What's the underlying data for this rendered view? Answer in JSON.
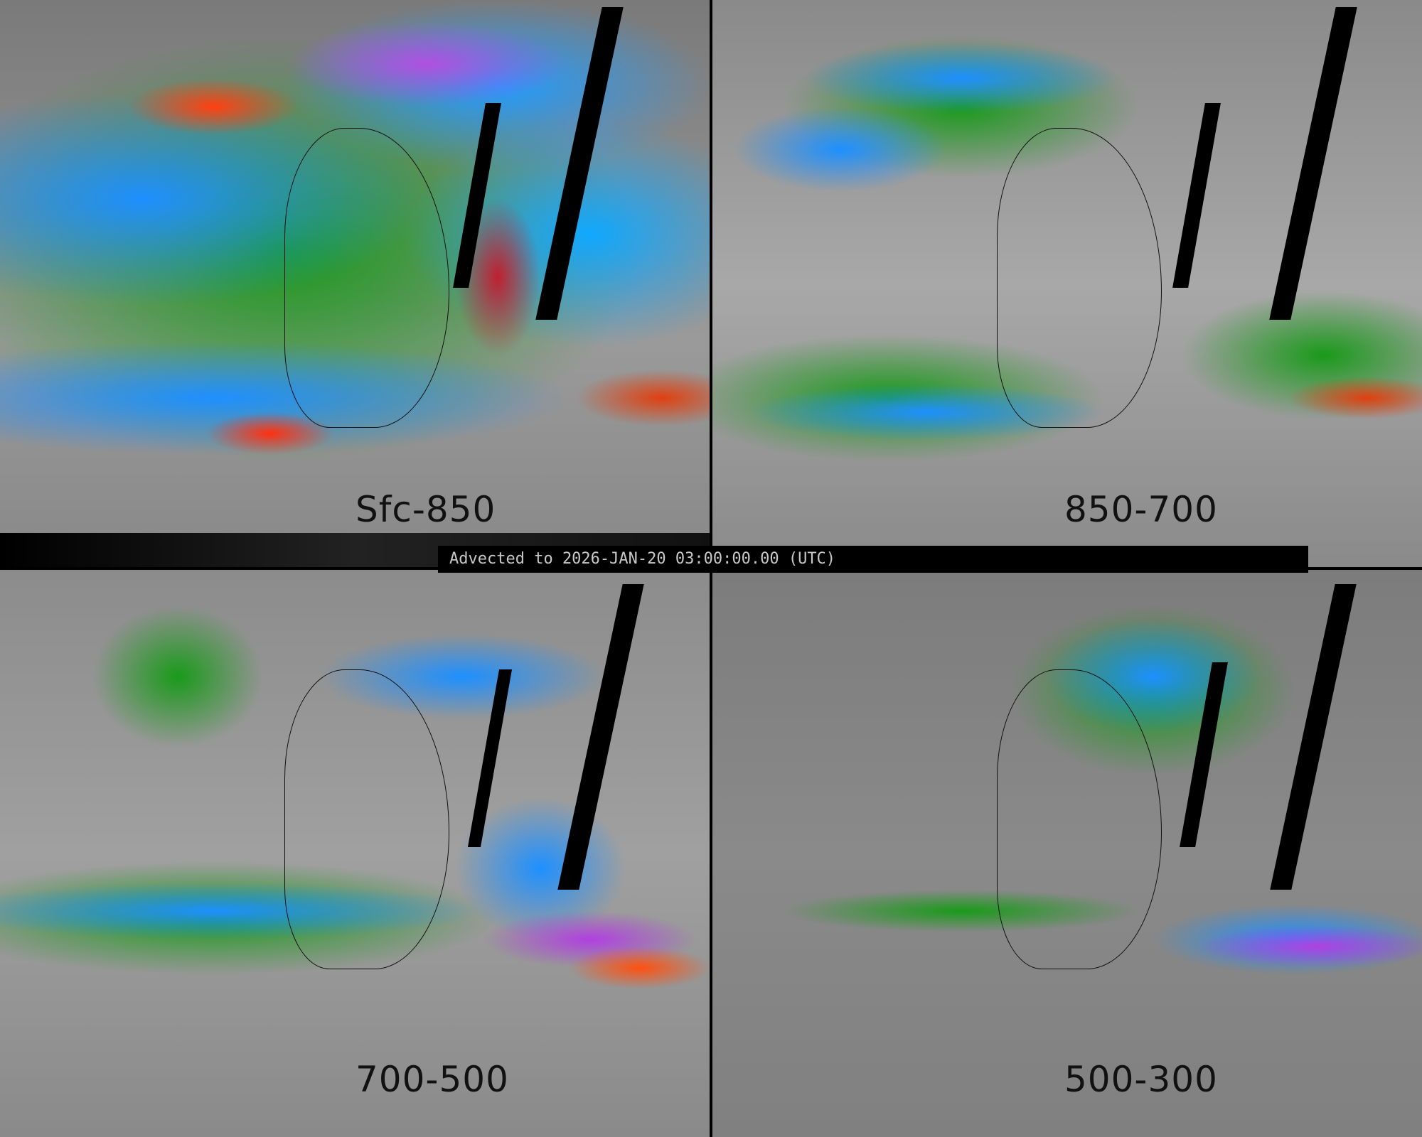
{
  "banner": {
    "text": "Advected to 2026-JAN-20 03:00:00.00 (UTC)"
  },
  "panels": [
    {
      "label": "Sfc-850"
    },
    {
      "label": "850-700"
    },
    {
      "label": "700-500"
    },
    {
      "label": "500-300"
    }
  ],
  "colors": {
    "green": "#1a9a1a",
    "blue": "#1e90ff",
    "cyan": "#00b4ff",
    "purple": "#b040e0",
    "red": "#ff3010",
    "gray": "#8a8a8a",
    "black": "#000000"
  }
}
